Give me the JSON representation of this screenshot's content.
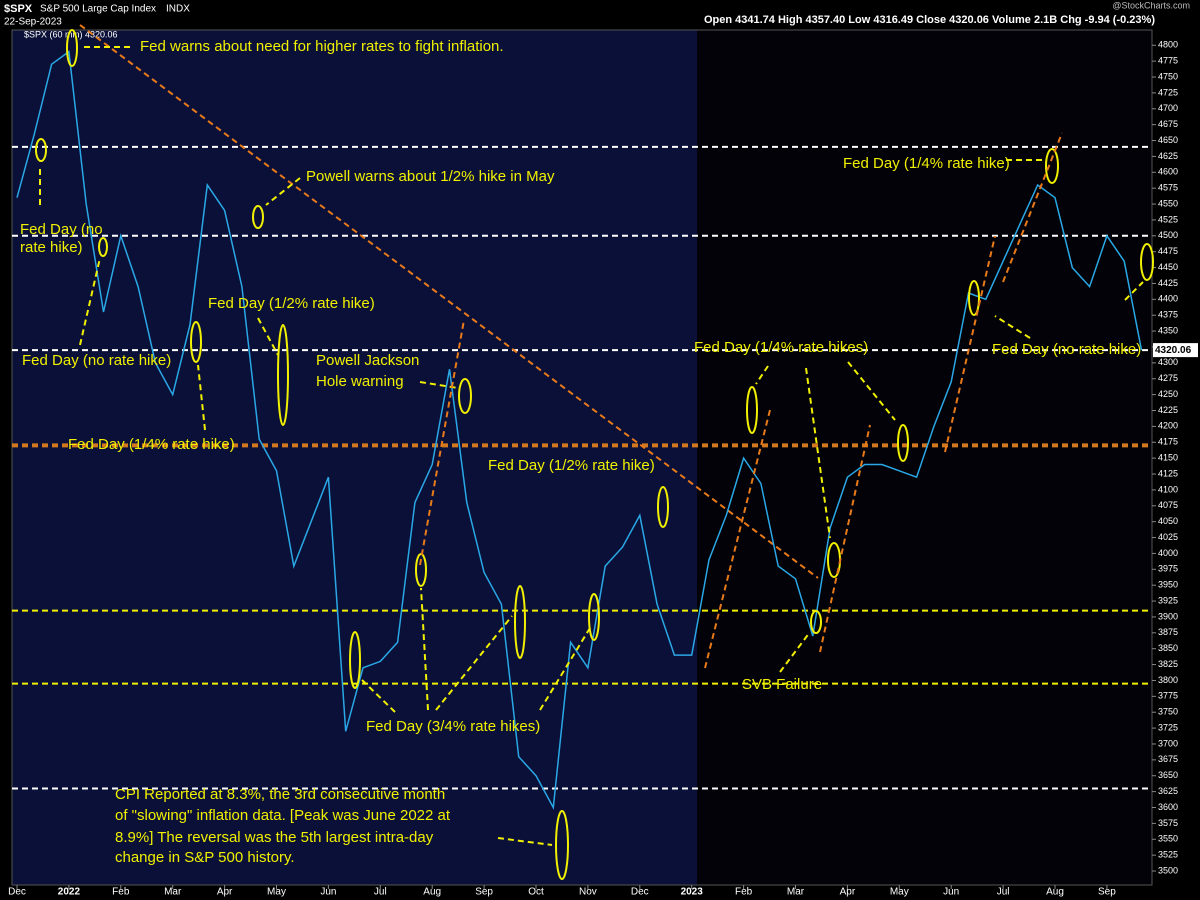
{
  "header": {
    "symbol": "$SPX",
    "name": "S&P 500 Large Cap Index",
    "exchange": "INDX",
    "date": "22-Sep-2023",
    "quote": "Open 4341.74  High 4357.40  Low 4316.49  Close 4320.06  Volume 2.1B  Chg -9.94 (-0.23%)",
    "watermark": "@StockCharts.com",
    "legend": "$SPX (60 min) 4320.06"
  },
  "chart_data": {
    "type": "line",
    "categories": [
      "Dec",
      null,
      null,
      "2022",
      null,
      null,
      "Feb",
      null,
      null,
      "Mar",
      null,
      null,
      "Apr",
      null,
      null,
      "May",
      null,
      null,
      "Jun",
      null,
      null,
      "Jul",
      null,
      null,
      "Aug",
      null,
      null,
      "Sep",
      null,
      null,
      "Oct",
      null,
      null,
      "Nov",
      null,
      null,
      "Dec",
      null,
      null,
      "2023",
      null,
      null,
      "Feb",
      null,
      null,
      "Mar",
      null,
      null,
      "Apr",
      null,
      null,
      "May",
      null,
      null,
      "Jun",
      null,
      null,
      "Jul",
      null,
      null,
      "Aug",
      null,
      null,
      "Sep",
      null,
      null
    ],
    "series": [
      {
        "name": "$SPX",
        "color": "#2aa8e6",
        "values": [
          4560,
          4660,
          4770,
          4790,
          4550,
          4380,
          4500,
          4420,
          4300,
          4250,
          4360,
          4580,
          4540,
          4420,
          4180,
          4130,
          3980,
          4050,
          4120,
          3720,
          3820,
          3830,
          3860,
          4080,
          4140,
          4290,
          4080,
          3970,
          3920,
          3680,
          3650,
          3600,
          3860,
          3820,
          3980,
          4010,
          4060,
          3920,
          3840,
          3840,
          3990,
          4060,
          4150,
          4110,
          3980,
          3960,
          3870,
          4040,
          4120,
          4140,
          4140,
          4130,
          4120,
          4200,
          4270,
          4410,
          4400,
          4460,
          4520,
          4580,
          4560,
          4450,
          4420,
          4500,
          4460,
          4320.06
        ]
      }
    ],
    "ylim": [
      3478,
      4824
    ],
    "yticks": [
      3500,
      3525,
      3550,
      3575,
      3600,
      3625,
      3650,
      3675,
      3700,
      3725,
      3750,
      3775,
      3800,
      3825,
      3850,
      3875,
      3900,
      3925,
      3950,
      3975,
      4000,
      4025,
      4050,
      4075,
      4100,
      4125,
      4150,
      4175,
      4200,
      4225,
      4250,
      4275,
      4300,
      4325,
      4350,
      4375,
      4400,
      4425,
      4450,
      4475,
      4500,
      4525,
      4550,
      4575,
      4600,
      4625,
      4650,
      4675,
      4700,
      4725,
      4750,
      4775,
      4800
    ],
    "last_price": {
      "value": 4320.06,
      "label": "4320.06"
    },
    "reference_lines": [
      {
        "value": 4640,
        "color": "#ffffff"
      },
      {
        "value": 4500,
        "color": "#ffffff"
      },
      {
        "value": 4320,
        "color": "#ffffff"
      },
      {
        "value": 3630,
        "color": "#ffffff"
      },
      {
        "value": 4170,
        "color": "#d2781e"
      },
      {
        "value": 3910,
        "color": "#f0f000"
      },
      {
        "value": 3795,
        "color": "#f0f000"
      }
    ],
    "annotations": [
      "Fed warns about need for higher rates to fight inflation.",
      "Powell warns about 1/2% hike in May",
      "Fed Day (no",
      "rate hike)",
      "Fed Day (1/2% rate hike)",
      "Fed Day (no rate hike)",
      "Powell Jackson",
      "Hole warning",
      "Fed Day (1/4% rate hike)",
      "Fed Day (1/2% rate hike)",
      "Fed Day (1/4% rate hikes)",
      "Fed Day (1/4% rate hike)",
      "Fed Day (no rate hike)",
      "SVB Failure",
      "Fed Day (3/4% rate hikes)",
      "CPI Reported at 8.3%, the 3rd consecutive month",
      "of \"slowing\" inflation data. [Peak was June 2022 at",
      "8.9%] The reversal was the 5th largest intra-day",
      "change in S&P 500 history."
    ]
  }
}
